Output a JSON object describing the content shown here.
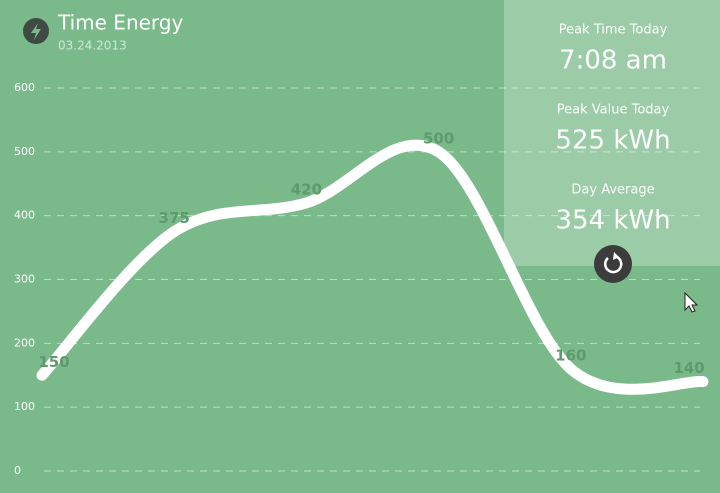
{
  "chart_data": {
    "type": "line",
    "title": "Time Energy",
    "subtitle": "03.24.2013",
    "categories": [
      null,
      null,
      null,
      null,
      null,
      null
    ],
    "series": [
      {
        "color": "#ffffff",
        "values": [
          150,
          375,
          420,
          500,
          160,
          140
        ]
      }
    ],
    "ylim": [
      0,
      600
    ],
    "yticks": [
      0,
      100,
      200,
      300,
      400,
      500,
      600
    ],
    "grid": true
  },
  "panel": {
    "items": [
      {
        "label": "Peak Time Today",
        "value": "7:08 am"
      },
      {
        "label": "Peak Value Today",
        "value": "525 kWh"
      },
      {
        "label": "Day Average",
        "value": "354 kWh"
      }
    ]
  }
}
